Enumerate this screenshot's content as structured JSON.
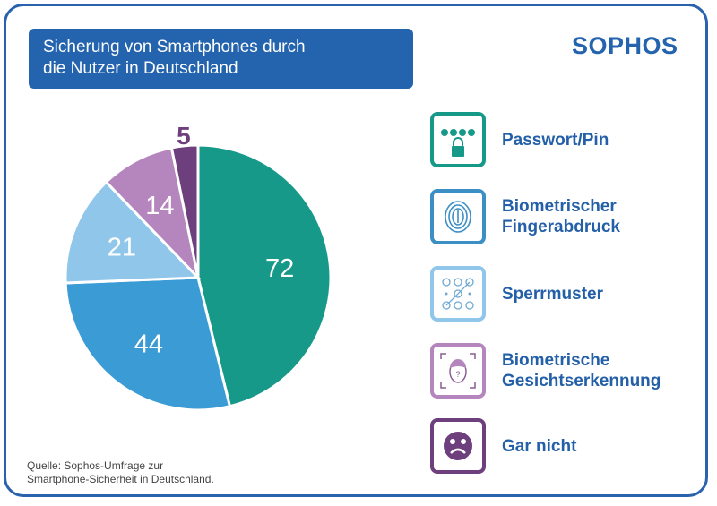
{
  "title_lines": [
    "Sicherung von Smartphones durch",
    "die Nutzer in Deutschland"
  ],
  "logo": "SOPHOS",
  "source_lines": [
    "Quelle:  Sophos-Umfrage zur",
    "Smartphone-Sicherheit in Deutschland."
  ],
  "colors": {
    "frame": "#2a62ad",
    "title_bg": "#2463ae",
    "text": "#2460a8"
  },
  "chart_data": {
    "type": "pie",
    "title": "Sicherung von Smartphones durch die Nutzer in Deutschland",
    "categories": [
      "Passwort/Pin",
      "Biometrischer Fingerabdruck",
      "Sperrmuster",
      "Biometrische Gesichtserkennung",
      "Gar nicht"
    ],
    "values": [
      72,
      44,
      21,
      14,
      5
    ],
    "colors": [
      "#17998a",
      "#3b9bd4",
      "#8fc6ea",
      "#b486bd",
      "#6d3f7d"
    ],
    "legend_placement": "right",
    "legend": [
      {
        "lines": [
          "Passwort/Pin"
        ],
        "icon": "lock-password-icon"
      },
      {
        "lines": [
          "Biometrischer",
          "Fingerabdruck"
        ],
        "icon": "fingerprint-icon"
      },
      {
        "lines": [
          "Sperrmuster"
        ],
        "icon": "pattern-lock-icon"
      },
      {
        "lines": [
          "Biometrische",
          "Gesichtserkennung"
        ],
        "icon": "face-scan-icon"
      },
      {
        "lines": [
          "Gar nicht"
        ],
        "icon": "sad-face-icon"
      }
    ]
  }
}
